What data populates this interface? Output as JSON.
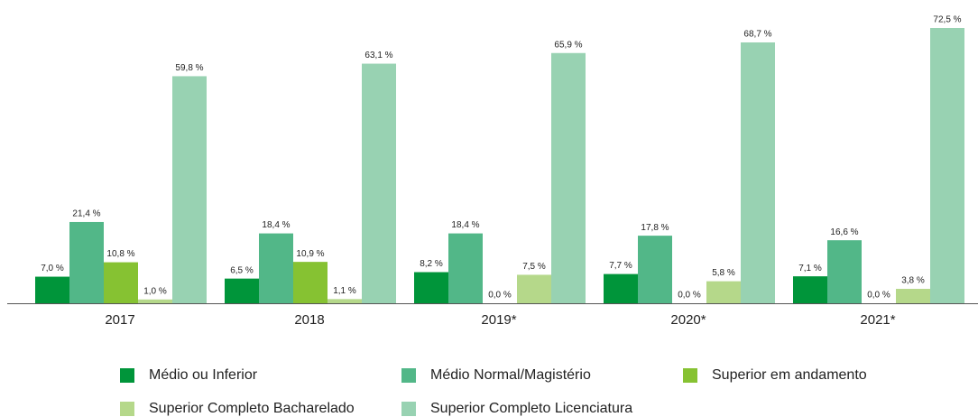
{
  "chart_data": {
    "type": "bar",
    "categories": [
      "2017",
      "2018",
      "2019*",
      "2020*",
      "2021*"
    ],
    "series": [
      {
        "name": "Médio ou Inferior",
        "color": "#00953a",
        "values": [
          7.0,
          6.5,
          8.2,
          7.7,
          7.1
        ],
        "value_labels": [
          "7,0 %",
          "6,5 %",
          "8,2 %",
          "7,7 %",
          "7,1 %"
        ]
      },
      {
        "name": "Médio Normal/Magistério",
        "color": "#52b788",
        "values": [
          21.4,
          18.4,
          18.4,
          17.8,
          16.6
        ],
        "value_labels": [
          "21,4 %",
          "18,4 %",
          "18,4 %",
          "17,8 %",
          "16,6 %"
        ]
      },
      {
        "name": "Superior em andamento",
        "color": "#86c232",
        "values": [
          10.8,
          10.9,
          0.0,
          0.0,
          0.0
        ],
        "value_labels": [
          "10,8 %",
          "10,9 %",
          "0,0 %",
          "0,0 %",
          "0,0 %"
        ]
      },
      {
        "name": "Superior Completo Bacharelado",
        "color": "#b5d88a",
        "values": [
          1.0,
          1.1,
          7.5,
          5.8,
          3.8
        ],
        "value_labels": [
          "1,0 %",
          "1,1 %",
          "7,5 %",
          "5,8 %",
          "3,8 %"
        ]
      },
      {
        "name": "Superior Completo Licenciatura",
        "color": "#98d2b2",
        "values": [
          59.8,
          63.1,
          65.9,
          68.7,
          72.5
        ],
        "value_labels": [
          "59,8 %",
          "63,1 %",
          "65,9 %",
          "68,7 %",
          "72,5 %"
        ]
      }
    ]
  }
}
